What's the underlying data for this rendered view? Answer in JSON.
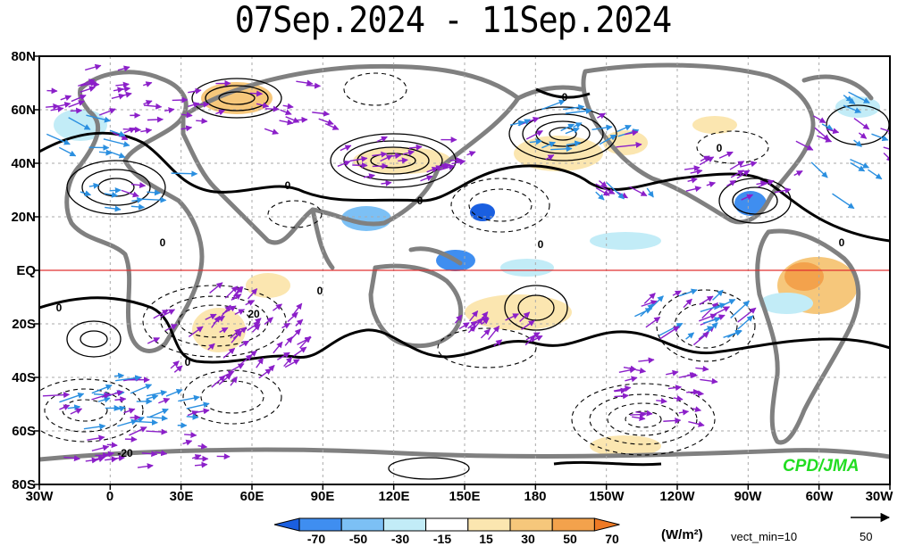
{
  "title": "07Sep.2024 - 11Sep.2024",
  "lat_labels": [
    "80N",
    "60N",
    "40N",
    "20N",
    "EQ",
    "20S",
    "40S",
    "60S",
    "80S"
  ],
  "lon_labels": [
    "30W",
    "0",
    "30E",
    "60E",
    "90E",
    "120E",
    "150E",
    "180",
    "150W",
    "120W",
    "90W",
    "60W",
    "30W"
  ],
  "contour_labels": [
    "0",
    "0",
    "0",
    "0",
    "0",
    "0",
    "0",
    "0",
    "0",
    "0",
    "20",
    "-20"
  ],
  "colorbar": {
    "ticks": [
      "-70",
      "-50",
      "-30",
      "-15",
      "15",
      "30",
      "50",
      "70"
    ],
    "colors": [
      "#1a5fe0",
      "#3f8ef0",
      "#7cc0f5",
      "#c2ecf7",
      "#ffffff",
      "#fbe6b0",
      "#f6c77b",
      "#f3a24c",
      "#ef7a25"
    ]
  },
  "units": "(W/m²)",
  "vect_min": "vect_min=10",
  "ref_vector": "50",
  "credit": "CPD/JMA",
  "colors": {
    "vector": "#8b1fc9",
    "vector_strong": "#2a8fe0",
    "equator": "#e03030",
    "land": "#808080"
  }
}
